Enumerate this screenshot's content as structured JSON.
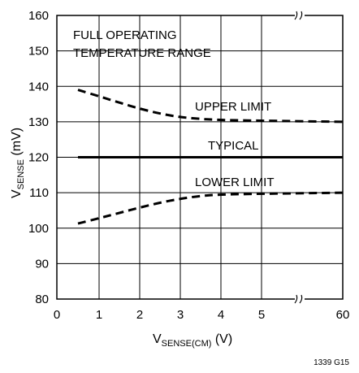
{
  "chart_data": {
    "type": "line",
    "title": "",
    "xlabel": {
      "main": "V",
      "sub": "SENSE(CM)",
      "unit": " (V)"
    },
    "ylabel": {
      "main": "V",
      "sub": "SENSE",
      "unit": " (mV)"
    },
    "x_ticks": [
      "0",
      "1",
      "2",
      "3",
      "4",
      "5",
      "60"
    ],
    "y_ticks": [
      "80",
      "90",
      "100",
      "110",
      "120",
      "130",
      "140",
      "150",
      "160"
    ],
    "ylim": [
      80,
      160
    ],
    "grid": true,
    "axis_break": "between 5 and 60",
    "annotations": {
      "condition_line1": "FULL OPERATING",
      "condition_line2": "TEMPERATURE RANGE",
      "upper": "UPPER LIMIT",
      "typical": "TYPICAL",
      "lower": "LOWER LIMIT"
    },
    "series": [
      {
        "key": "upper",
        "style": "dashed",
        "points": [
          [
            0.5,
            139
          ],
          [
            1,
            137.2
          ],
          [
            1.5,
            135.4
          ],
          [
            2,
            133.7
          ],
          [
            2.5,
            132.3
          ],
          [
            3,
            131.3
          ],
          [
            3.5,
            130.8
          ],
          [
            4,
            130.5
          ],
          [
            5,
            130.3
          ],
          [
            60,
            130
          ]
        ]
      },
      {
        "key": "typical",
        "style": "solid",
        "points": [
          [
            0.5,
            120
          ],
          [
            60,
            120
          ]
        ]
      },
      {
        "key": "lower",
        "style": "dashed",
        "points": [
          [
            0.5,
            101.3
          ],
          [
            1,
            102.8
          ],
          [
            1.5,
            104.3
          ],
          [
            2,
            105.8
          ],
          [
            2.5,
            107.2
          ],
          [
            3,
            108.3
          ],
          [
            3.5,
            109.1
          ],
          [
            4,
            109.5
          ],
          [
            5,
            109.7
          ],
          [
            60,
            110
          ]
        ]
      }
    ],
    "figure_id": "1339 G15"
  }
}
